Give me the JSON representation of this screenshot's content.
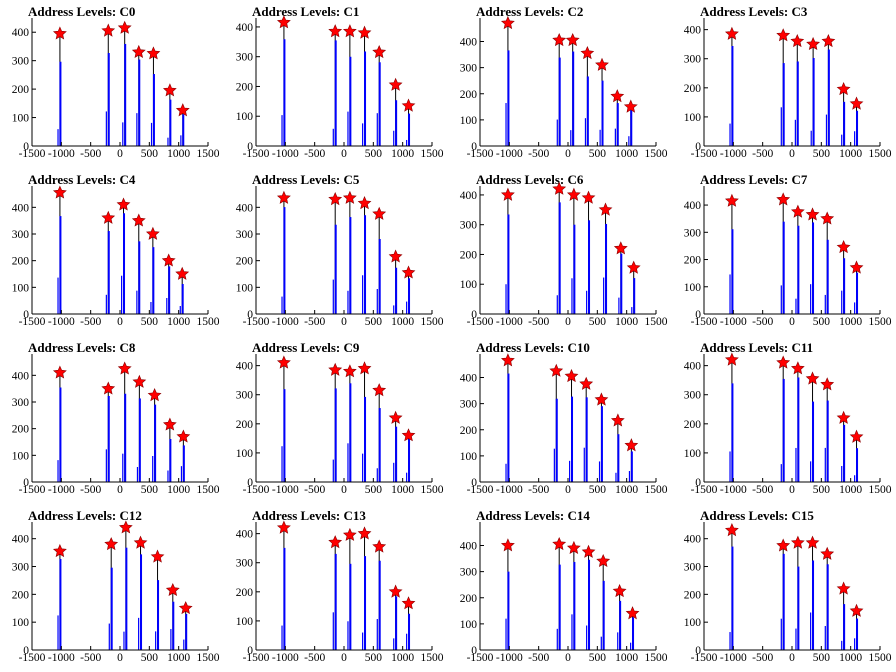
{
  "chart_data": [
    {
      "type": "bar",
      "title": "Address Levels: C0",
      "xlim": [
        -1500,
        1500
      ],
      "ylim": [
        0,
        450
      ],
      "xticks": [
        -1500,
        -1000,
        -500,
        0,
        500,
        1000,
        1500
      ],
      "yticks": [
        0,
        100,
        200,
        300,
        400
      ],
      "peaks": [
        {
          "x": -1024,
          "y": 395
        },
        {
          "x": -200,
          "y": 405
        },
        {
          "x": 80,
          "y": 415
        },
        {
          "x": 320,
          "y": 330
        },
        {
          "x": 570,
          "y": 325
        },
        {
          "x": 850,
          "y": 195
        },
        {
          "x": 1070,
          "y": 125
        }
      ]
    },
    {
      "type": "bar",
      "title": "Address Levels: C1",
      "xlim": [
        -1500,
        1500
      ],
      "ylim": [
        0,
        430
      ],
      "xticks": [
        -1500,
        -1000,
        -500,
        0,
        500,
        1000,
        1500
      ],
      "yticks": [
        0,
        100,
        200,
        300,
        400
      ],
      "peaks": [
        {
          "x": -1024,
          "y": 415
        },
        {
          "x": -150,
          "y": 385
        },
        {
          "x": 100,
          "y": 385
        },
        {
          "x": 350,
          "y": 380
        },
        {
          "x": 600,
          "y": 315
        },
        {
          "x": 880,
          "y": 205
        },
        {
          "x": 1100,
          "y": 135
        }
      ]
    },
    {
      "type": "bar",
      "title": "Address Levels: C2",
      "xlim": [
        -1500,
        1500
      ],
      "ylim": [
        0,
        490
      ],
      "xticks": [
        -1500,
        -1000,
        -500,
        0,
        500,
        1000,
        1500
      ],
      "yticks": [
        0,
        100,
        200,
        300,
        400
      ],
      "peaks": [
        {
          "x": -1024,
          "y": 470
        },
        {
          "x": -150,
          "y": 405
        },
        {
          "x": 80,
          "y": 405
        },
        {
          "x": 330,
          "y": 355
        },
        {
          "x": 580,
          "y": 310
        },
        {
          "x": 840,
          "y": 190
        },
        {
          "x": 1070,
          "y": 150
        }
      ]
    },
    {
      "type": "bar",
      "title": "Address Levels: C3",
      "xlim": [
        -1500,
        1500
      ],
      "ylim": [
        0,
        440
      ],
      "xticks": [
        -1500,
        -1000,
        -500,
        0,
        500,
        1000,
        1500
      ],
      "yticks": [
        0,
        100,
        200,
        300,
        400
      ],
      "peaks": [
        {
          "x": -1024,
          "y": 385
        },
        {
          "x": -150,
          "y": 380
        },
        {
          "x": 90,
          "y": 360
        },
        {
          "x": 360,
          "y": 350
        },
        {
          "x": 620,
          "y": 360
        },
        {
          "x": 880,
          "y": 195
        },
        {
          "x": 1100,
          "y": 145
        }
      ]
    },
    {
      "type": "bar",
      "title": "Address Levels: C4",
      "xlim": [
        -1500,
        1500
      ],
      "ylim": [
        0,
        480
      ],
      "xticks": [
        -1500,
        -1000,
        -500,
        0,
        500,
        1000,
        1500
      ],
      "yticks": [
        0,
        100,
        200,
        300,
        400
      ],
      "peaks": [
        {
          "x": -1024,
          "y": 455
        },
        {
          "x": -200,
          "y": 360
        },
        {
          "x": 60,
          "y": 410
        },
        {
          "x": 320,
          "y": 350
        },
        {
          "x": 560,
          "y": 300
        },
        {
          "x": 830,
          "y": 200
        },
        {
          "x": 1060,
          "y": 150
        }
      ]
    },
    {
      "type": "bar",
      "title": "Address Levels: C5",
      "xlim": [
        -1500,
        1500
      ],
      "ylim": [
        0,
        480
      ],
      "xticks": [
        -1500,
        -1000,
        -500,
        0,
        500,
        1000,
        1500
      ],
      "yticks": [
        0,
        100,
        200,
        300,
        400
      ],
      "peaks": [
        {
          "x": -1024,
          "y": 435
        },
        {
          "x": -150,
          "y": 430
        },
        {
          "x": 100,
          "y": 435
        },
        {
          "x": 350,
          "y": 415
        },
        {
          "x": 600,
          "y": 375
        },
        {
          "x": 880,
          "y": 215
        },
        {
          "x": 1100,
          "y": 155
        }
      ]
    },
    {
      "type": "bar",
      "title": "Address Levels: C6",
      "xlim": [
        -1500,
        1500
      ],
      "ylim": [
        0,
        430
      ],
      "xticks": [
        -1500,
        -1000,
        -500,
        0,
        500,
        1000,
        1500
      ],
      "yticks": [
        0,
        100,
        200,
        300,
        400
      ],
      "peaks": [
        {
          "x": -1024,
          "y": 400
        },
        {
          "x": -150,
          "y": 420
        },
        {
          "x": 100,
          "y": 400
        },
        {
          "x": 350,
          "y": 390
        },
        {
          "x": 640,
          "y": 350
        },
        {
          "x": 900,
          "y": 220
        },
        {
          "x": 1120,
          "y": 155
        }
      ]
    },
    {
      "type": "bar",
      "title": "Address Levels: C7",
      "xlim": [
        -1500,
        1500
      ],
      "ylim": [
        0,
        470
      ],
      "xticks": [
        -1500,
        -1000,
        -500,
        0,
        500,
        1000,
        1500
      ],
      "yticks": [
        0,
        100,
        200,
        300,
        400
      ],
      "peaks": [
        {
          "x": -1024,
          "y": 415
        },
        {
          "x": -150,
          "y": 420
        },
        {
          "x": 100,
          "y": 375
        },
        {
          "x": 350,
          "y": 365
        },
        {
          "x": 600,
          "y": 350
        },
        {
          "x": 880,
          "y": 245
        },
        {
          "x": 1100,
          "y": 170
        }
      ]
    },
    {
      "type": "bar",
      "title": "Address Levels: C8",
      "xlim": [
        -1500,
        1500
      ],
      "ylim": [
        0,
        480
      ],
      "xticks": [
        -1500,
        -1000,
        -500,
        0,
        500,
        1000,
        1500
      ],
      "yticks": [
        0,
        100,
        200,
        300,
        400
      ],
      "peaks": [
        {
          "x": -1024,
          "y": 410
        },
        {
          "x": -200,
          "y": 350
        },
        {
          "x": 80,
          "y": 425
        },
        {
          "x": 330,
          "y": 375
        },
        {
          "x": 590,
          "y": 325
        },
        {
          "x": 850,
          "y": 215
        },
        {
          "x": 1080,
          "y": 170
        }
      ]
    },
    {
      "type": "bar",
      "title": "Address Levels: C9",
      "xlim": [
        -1500,
        1500
      ],
      "ylim": [
        0,
        440
      ],
      "xticks": [
        -1500,
        -1000,
        -500,
        0,
        500,
        1000,
        1500
      ],
      "yticks": [
        0,
        100,
        200,
        300,
        400
      ],
      "peaks": [
        {
          "x": -1024,
          "y": 410
        },
        {
          "x": -150,
          "y": 385
        },
        {
          "x": 100,
          "y": 380
        },
        {
          "x": 350,
          "y": 390
        },
        {
          "x": 600,
          "y": 315
        },
        {
          "x": 880,
          "y": 220
        },
        {
          "x": 1100,
          "y": 160
        }
      ]
    },
    {
      "type": "bar",
      "title": "Address Levels: C10",
      "xlim": [
        -1500,
        1500
      ],
      "ylim": [
        0,
        490
      ],
      "xticks": [
        -1500,
        -1000,
        -500,
        0,
        500,
        1000,
        1500
      ],
      "yticks": [
        0,
        100,
        200,
        300,
        400
      ],
      "peaks": [
        {
          "x": -1024,
          "y": 465
        },
        {
          "x": -200,
          "y": 425
        },
        {
          "x": 60,
          "y": 405
        },
        {
          "x": 310,
          "y": 375
        },
        {
          "x": 570,
          "y": 315
        },
        {
          "x": 850,
          "y": 235
        },
        {
          "x": 1080,
          "y": 140
        }
      ]
    },
    {
      "type": "bar",
      "title": "Address Levels: C11",
      "xlim": [
        -1500,
        1500
      ],
      "ylim": [
        0,
        440
      ],
      "xticks": [
        -1500,
        -1000,
        -500,
        0,
        500,
        1000,
        1500
      ],
      "yticks": [
        0,
        100,
        200,
        300,
        400
      ],
      "peaks": [
        {
          "x": -1024,
          "y": 420
        },
        {
          "x": -150,
          "y": 410
        },
        {
          "x": 100,
          "y": 390
        },
        {
          "x": 350,
          "y": 355
        },
        {
          "x": 600,
          "y": 335
        },
        {
          "x": 880,
          "y": 220
        },
        {
          "x": 1100,
          "y": 155
        }
      ]
    },
    {
      "type": "bar",
      "title": "Address Levels: C12",
      "xlim": [
        -1500,
        1500
      ],
      "ylim": [
        0,
        460
      ],
      "xticks": [
        -1500,
        -1000,
        -500,
        0,
        500,
        1000,
        1500
      ],
      "yticks": [
        0,
        100,
        200,
        300,
        400
      ],
      "peaks": [
        {
          "x": -1024,
          "y": 355
        },
        {
          "x": -150,
          "y": 380
        },
        {
          "x": 100,
          "y": 440
        },
        {
          "x": 350,
          "y": 385
        },
        {
          "x": 640,
          "y": 335
        },
        {
          "x": 900,
          "y": 215
        },
        {
          "x": 1120,
          "y": 150
        }
      ]
    },
    {
      "type": "bar",
      "title": "Address Levels: C13",
      "xlim": [
        -1500,
        1500
      ],
      "ylim": [
        0,
        440
      ],
      "xticks": [
        -1500,
        -1000,
        -500,
        0,
        500,
        1000,
        1500
      ],
      "yticks": [
        0,
        100,
        200,
        300,
        400
      ],
      "peaks": [
        {
          "x": -1024,
          "y": 420
        },
        {
          "x": -150,
          "y": 370
        },
        {
          "x": 100,
          "y": 395
        },
        {
          "x": 350,
          "y": 400
        },
        {
          "x": 600,
          "y": 355
        },
        {
          "x": 880,
          "y": 200
        },
        {
          "x": 1100,
          "y": 160
        }
      ]
    },
    {
      "type": "bar",
      "title": "Address Levels: C14",
      "xlim": [
        -1500,
        1500
      ],
      "ylim": [
        0,
        490
      ],
      "xticks": [
        -1500,
        -1000,
        -500,
        0,
        500,
        1000,
        1500
      ],
      "yticks": [
        0,
        100,
        200,
        300,
        400
      ],
      "peaks": [
        {
          "x": -1024,
          "y": 400
        },
        {
          "x": -150,
          "y": 405
        },
        {
          "x": 100,
          "y": 390
        },
        {
          "x": 350,
          "y": 375
        },
        {
          "x": 600,
          "y": 340
        },
        {
          "x": 880,
          "y": 225
        },
        {
          "x": 1100,
          "y": 140
        }
      ]
    },
    {
      "type": "bar",
      "title": "Address Levels: C15",
      "xlim": [
        -1500,
        1500
      ],
      "ylim": [
        0,
        460
      ],
      "xticks": [
        -1500,
        -1000,
        -500,
        0,
        500,
        1000,
        1500
      ],
      "yticks": [
        0,
        100,
        200,
        300,
        400
      ],
      "peaks": [
        {
          "x": -1024,
          "y": 430
        },
        {
          "x": -150,
          "y": 375
        },
        {
          "x": 100,
          "y": 385
        },
        {
          "x": 350,
          "y": 385
        },
        {
          "x": 600,
          "y": 345
        },
        {
          "x": 880,
          "y": 220
        },
        {
          "x": 1100,
          "y": 140
        }
      ]
    }
  ]
}
